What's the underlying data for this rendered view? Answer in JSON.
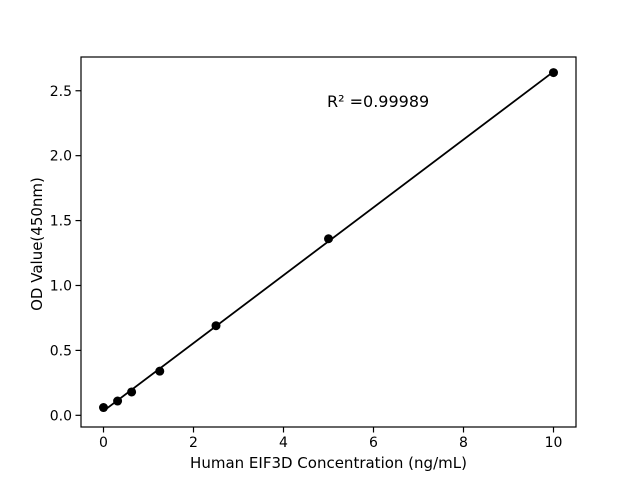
{
  "figure": {
    "background_color": "#ffffff"
  },
  "chart_data": {
    "type": "scatter",
    "title": "",
    "xlabel": "Human EIF3D Concentration (ng/mL)",
    "ylabel": "OD Value(450nm)",
    "annotation": "R² =0.99989",
    "x": [
      0,
      0.313,
      0.625,
      1.25,
      2.5,
      5,
      10
    ],
    "y": [
      0.06,
      0.11,
      0.18,
      0.34,
      0.69,
      1.36,
      2.64
    ],
    "fit": "linear",
    "fit_line": true,
    "xticks": [
      0,
      2,
      4,
      6,
      8,
      10
    ],
    "xtick_labels": [
      "0",
      "2",
      "4",
      "6",
      "8",
      "10"
    ],
    "yticks": [
      0,
      0.5,
      1,
      1.5,
      2,
      2.5
    ],
    "ytick_labels": [
      "0.0",
      "0.5",
      "1.0",
      "1.5",
      "2.0",
      "2.5"
    ],
    "xlim": [
      -0.5,
      10.5
    ],
    "ylim": [
      -0.09,
      2.76
    ],
    "grid": false,
    "legend": null,
    "colors": {
      "line": "#000000",
      "marker": "#000000",
      "axis": "#000000",
      "text": "#000000",
      "background": "#ffffff"
    }
  }
}
